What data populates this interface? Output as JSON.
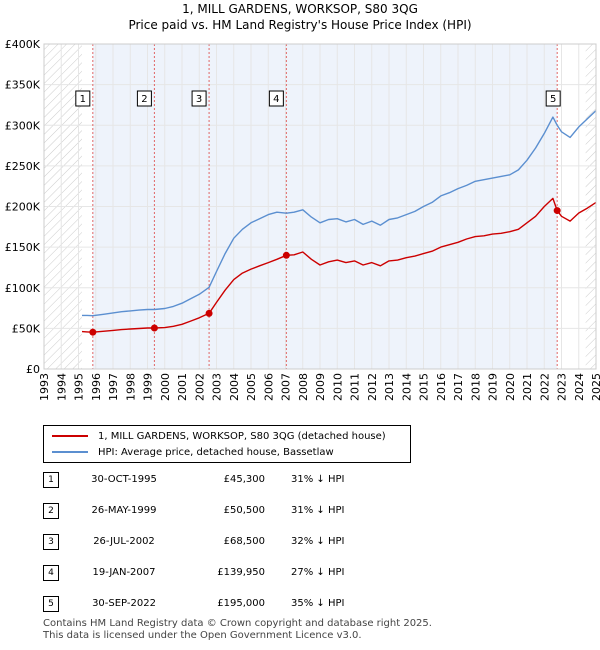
{
  "title_line1": "1, MILL GARDENS, WORKSOP, S80 3QG",
  "title_line2": "Price paid vs. HM Land Registry's House Price Index (HPI)",
  "chart_data": {
    "type": "line",
    "title": "Price paid vs. HM Land Registry's House Price Index (HPI)",
    "ylim": [
      0,
      400000
    ],
    "xlim": [
      1993,
      2025
    ],
    "y_ticks": [
      0,
      50000,
      100000,
      150000,
      200000,
      250000,
      300000,
      350000,
      400000
    ],
    "y_tick_labels": [
      "£0",
      "£50K",
      "£100K",
      "£150K",
      "£200K",
      "£250K",
      "£300K",
      "£350K",
      "£400K"
    ],
    "x_ticks": [
      1993,
      1994,
      1995,
      1996,
      1997,
      1998,
      1999,
      2000,
      2001,
      2002,
      2003,
      2004,
      2005,
      2006,
      2007,
      2008,
      2009,
      2010,
      2011,
      2012,
      2013,
      2014,
      2015,
      2016,
      2017,
      2018,
      2019,
      2020,
      2021,
      2022,
      2023,
      2024,
      2025
    ],
    "x_tick_labels": [
      "1993",
      "1994",
      "1995",
      "1996",
      "1997",
      "1998",
      "1999",
      "2000",
      "2001",
      "2002",
      "2003",
      "2004",
      "2005",
      "2006",
      "2007",
      "2008",
      "2009",
      "2010",
      "2011",
      "2012",
      "2013",
      "2014",
      "2015",
      "2016",
      "2017",
      "2018",
      "2019",
      "2020",
      "2021",
      "2022",
      "2023",
      "2024",
      "2025"
    ],
    "hatched_ranges": [
      [
        1993,
        1995.2
      ],
      [
        2024.4,
        2025
      ]
    ],
    "series": [
      {
        "name": "1, MILL GARDENS, WORKSOP, S80 3QG (detached house)",
        "color": "#cc0000",
        "x": [
          1995.2,
          1995.5,
          1995.83,
          1996.5,
          1997,
          1997.5,
          1998,
          1998.5,
          1999,
          1999.4,
          2000,
          2000.5,
          2001,
          2001.5,
          2002,
          2002.57,
          2003,
          2003.5,
          2004,
          2004.5,
          2005,
          2005.5,
          2006,
          2006.5,
          2007.05,
          2007.5,
          2008,
          2008.5,
          2009,
          2009.5,
          2010,
          2010.5,
          2011,
          2011.5,
          2012,
          2012.5,
          2013,
          2013.5,
          2014,
          2014.5,
          2015,
          2015.5,
          2016,
          2016.5,
          2017,
          2017.5,
          2018,
          2018.5,
          2019,
          2019.5,
          2020,
          2020.5,
          2021,
          2021.5,
          2022,
          2022.5,
          2022.75,
          2023,
          2023.5,
          2024,
          2024.5,
          2025
        ],
        "y": [
          46000,
          45700,
          45300,
          46500,
          47500,
          48500,
          49200,
          49800,
          50500,
          50500,
          51000,
          52500,
          55000,
          59000,
          63000,
          68500,
          82000,
          97000,
          110000,
          118000,
          123000,
          127000,
          131000,
          135000,
          139950,
          140500,
          144000,
          135000,
          128000,
          132000,
          134000,
          131000,
          133000,
          128000,
          131000,
          127000,
          133000,
          134000,
          137000,
          139000,
          142000,
          145000,
          150000,
          153000,
          156000,
          160000,
          163000,
          164000,
          166000,
          167000,
          169000,
          172000,
          180000,
          188000,
          200000,
          210000,
          195000,
          188000,
          182000,
          192000,
          198000,
          205000
        ]
      },
      {
        "name": "HPI: Average price, detached house, Bassetlaw",
        "color": "#5b8fd0",
        "x": [
          1995.2,
          1995.5,
          1995.83,
          1996.5,
          1997,
          1997.5,
          1998,
          1998.5,
          1999,
          1999.4,
          2000,
          2000.5,
          2001,
          2001.5,
          2002,
          2002.57,
          2003,
          2003.5,
          2004,
          2004.5,
          2005,
          2005.5,
          2006,
          2006.5,
          2007.05,
          2007.5,
          2008,
          2008.5,
          2009,
          2009.5,
          2010,
          2010.5,
          2011,
          2011.5,
          2012,
          2012.5,
          2013,
          2013.5,
          2014,
          2014.5,
          2015,
          2015.5,
          2016,
          2016.5,
          2017,
          2017.5,
          2018,
          2018.5,
          2019,
          2019.5,
          2020,
          2020.5,
          2021,
          2021.5,
          2022,
          2022.5,
          2022.75,
          2023,
          2023.5,
          2024,
          2024.5,
          2025
        ],
        "y": [
          66000,
          66000,
          65600,
          67500,
          69000,
          70500,
          71500,
          72500,
          73200,
          73200,
          74500,
          77000,
          81000,
          86500,
          92000,
          100500,
          120000,
          142000,
          161000,
          172000,
          180000,
          185000,
          190000,
          193000,
          191700,
          193000,
          196000,
          187000,
          180000,
          184000,
          185000,
          181000,
          184000,
          178000,
          182000,
          177000,
          184000,
          186000,
          190000,
          194000,
          200000,
          205000,
          213000,
          217000,
          222000,
          226000,
          231000,
          233000,
          235000,
          237000,
          239000,
          245000,
          257000,
          272000,
          290000,
          310000,
          300000,
          292000,
          285000,
          298000,
          308000,
          318000
        ]
      }
    ],
    "sales": [
      {
        "num": "1",
        "x": 1995.83,
        "price": 45300
      },
      {
        "num": "2",
        "x": 1999.4,
        "price": 50500
      },
      {
        "num": "3",
        "x": 2002.57,
        "price": 68500
      },
      {
        "num": "4",
        "x": 2007.05,
        "price": 139950
      },
      {
        "num": "5",
        "x": 2022.75,
        "price": 195000
      }
    ],
    "legend_position": "below"
  },
  "legend": {
    "property_label": "1, MILL GARDENS, WORKSOP, S80 3QG (detached house)",
    "hpi_label": "HPI: Average price, detached house, Bassetlaw",
    "property_color": "#cc0000",
    "hpi_color": "#5b8fd0"
  },
  "sales_table": [
    {
      "num": "1",
      "date": "30-OCT-1995",
      "price": "£45,300",
      "hpi": "31% ↓ HPI"
    },
    {
      "num": "2",
      "date": "26-MAY-1999",
      "price": "£50,500",
      "hpi": "31% ↓ HPI"
    },
    {
      "num": "3",
      "date": "26-JUL-2002",
      "price": "£68,500",
      "hpi": "32% ↓ HPI"
    },
    {
      "num": "4",
      "date": "19-JAN-2007",
      "price": "£139,950",
      "hpi": "27% ↓ HPI"
    },
    {
      "num": "5",
      "date": "30-SEP-2022",
      "price": "£195,000",
      "hpi": "35% ↓ HPI"
    }
  ],
  "footer": {
    "line1": "Contains HM Land Registry data © Crown copyright and database right 2025.",
    "line2": "This data is licensed under the Open Government Licence v3.0."
  }
}
